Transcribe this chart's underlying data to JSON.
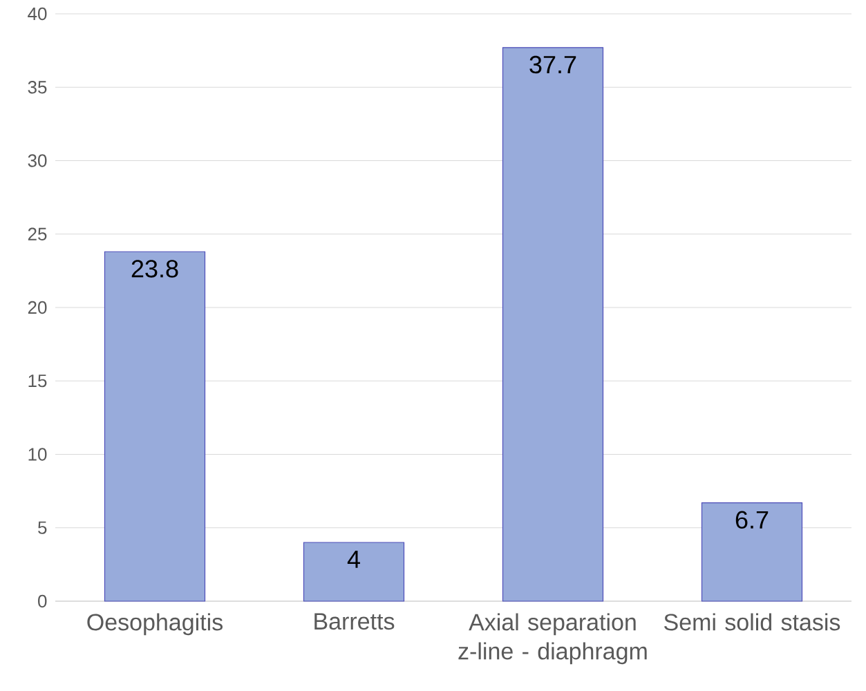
{
  "chart_data": {
    "type": "bar",
    "categories": [
      "Oesophagitis",
      "Barretts",
      "Axial separation z-line - diaphragm",
      "Semi solid stasis"
    ],
    "values": [
      23.8,
      4,
      37.7,
      6.7
    ],
    "color": "#98abdb",
    "ylim": [
      0,
      40
    ],
    "yticks": [
      0,
      5,
      10,
      15,
      20,
      25,
      30,
      35,
      40
    ],
    "grid": "y",
    "data_labels": true
  }
}
